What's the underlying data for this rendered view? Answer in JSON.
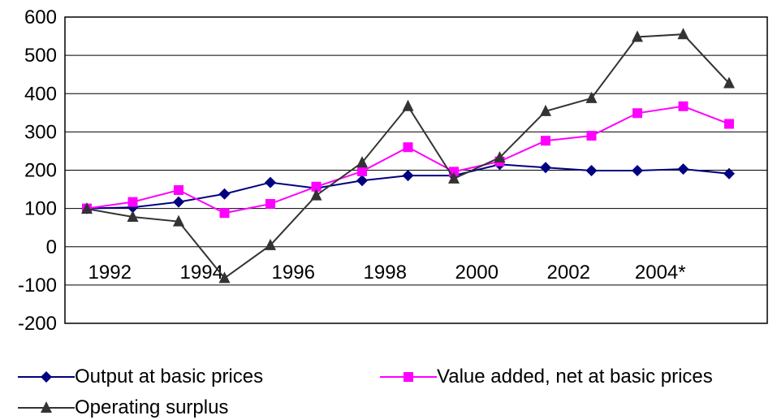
{
  "chart_data": {
    "type": "line",
    "title": "",
    "xlabel": "",
    "ylabel": "",
    "ylim": [
      -200,
      600
    ],
    "yticks": [
      600,
      500,
      400,
      300,
      200,
      100,
      0,
      -100,
      -200
    ],
    "x_tick_labels": [
      "1992",
      "1994",
      "1996",
      "1998",
      "2000",
      "2002",
      "2004*"
    ],
    "grid": "horizontal",
    "legend_position": "bottom",
    "series": [
      {
        "name": "Output at basic prices",
        "color": "#000080",
        "marker": "diamond",
        "values": [
          100,
          103,
          117,
          138,
          168,
          153,
          173,
          186,
          186,
          215,
          207,
          199,
          199,
          203,
          191
        ]
      },
      {
        "name": "Value added, net at basic prices",
        "color": "#ff00ff",
        "marker": "square",
        "values": [
          100,
          117,
          148,
          88,
          112,
          157,
          197,
          260,
          196,
          223,
          277,
          290,
          349,
          367,
          321
        ]
      },
      {
        "name": "Operating surplus",
        "color": "#333333",
        "marker": "triangle",
        "values": [
          99,
          78,
          66,
          -82,
          4,
          134,
          220,
          367,
          178,
          233,
          354,
          388,
          548,
          555,
          427
        ]
      }
    ]
  }
}
